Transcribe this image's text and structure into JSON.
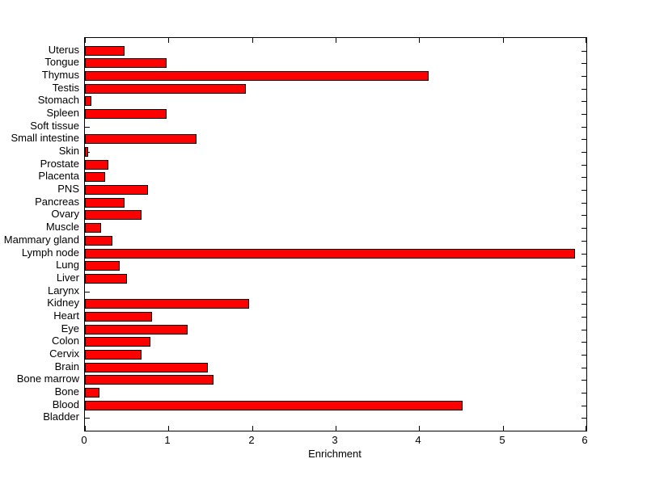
{
  "figure": {
    "background_color": "#ffffff",
    "axes_border_color": "#000000"
  },
  "chart_data": {
    "type": "bar",
    "orientation": "horizontal",
    "title": "",
    "xlabel": "Enrichment",
    "ylabel": "",
    "xlim": [
      0,
      6
    ],
    "x_ticks": [
      "0",
      "1",
      "2",
      "3",
      "4",
      "5",
      "6"
    ],
    "grid": false,
    "legend": null,
    "bar_color": "#ff0000",
    "bar_border_color": "#000000",
    "categories": [
      "Uterus",
      "Tongue",
      "Thymus",
      "Testis",
      "Stomach",
      "Spleen",
      "Soft tissue",
      "Small intestine",
      "Skin",
      "Prostate",
      "Placenta",
      "PNS",
      "Pancreas",
      "Ovary",
      "Muscle",
      "Mammary gland",
      "Lymph node",
      "Lung",
      "Liver",
      "Larynx",
      "Kidney",
      "Heart",
      "Eye",
      "Colon",
      "Cervix",
      "Brain",
      "Bone marrow",
      "Bone",
      "Blood",
      "Bladder"
    ],
    "values": [
      0.47,
      0.98,
      4.11,
      1.93,
      0.08,
      0.98,
      0,
      1.34,
      0.04,
      0.28,
      0.24,
      0.75,
      0.47,
      0.68,
      0.19,
      0.33,
      5.86,
      0.42,
      0.5,
      0,
      1.96,
      0.8,
      1.23,
      0.78,
      0.68,
      1.47,
      1.54,
      0.17,
      4.52,
      0
    ],
    "category_order_note": "listed top to bottom as displayed"
  }
}
